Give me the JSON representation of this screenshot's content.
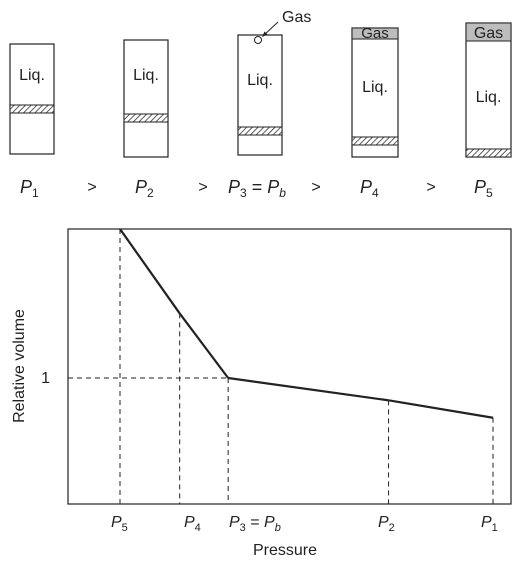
{
  "cylinders": [
    {
      "id": "c1",
      "liquid_label": "Liq.",
      "has_gas": false,
      "has_bubble": false
    },
    {
      "id": "c2",
      "liquid_label": "Liq.",
      "has_gas": false,
      "has_bubble": false
    },
    {
      "id": "c3",
      "liquid_label": "Liq.",
      "has_gas": false,
      "has_bubble": true,
      "bubble_callout": "Gas"
    },
    {
      "id": "c4",
      "liquid_label": "Liq.",
      "has_gas": true,
      "gas_label": "Gas"
    },
    {
      "id": "c5",
      "liquid_label": "Liq.",
      "has_gas": true,
      "gas_label": "Gas"
    }
  ],
  "pressure_sequence": [
    {
      "kind": "p",
      "base": "P",
      "sub": "1"
    },
    {
      "kind": "op",
      "text": ">"
    },
    {
      "kind": "p",
      "base": "P",
      "sub": "2"
    },
    {
      "kind": "op",
      "text": ">"
    },
    {
      "kind": "eq",
      "base": "P",
      "sub": "3",
      "eq": " = ",
      "base2": "P",
      "sub2": "b"
    },
    {
      "kind": "op",
      "text": ">"
    },
    {
      "kind": "p",
      "base": "P",
      "sub": "4"
    },
    {
      "kind": "op",
      "text": ">"
    },
    {
      "kind": "p",
      "base": "P",
      "sub": "5"
    }
  ],
  "chart_data": {
    "type": "line",
    "xlabel": "Pressure",
    "ylabel": "Relative volume",
    "y_tick": "1",
    "x_direction": "decreasing to the left",
    "points": [
      {
        "label": "P5",
        "x": 0.0,
        "y": 1.6
      },
      {
        "label": "P4",
        "x": 0.16,
        "y": 1.26
      },
      {
        "label": "P3 = Pb",
        "x": 0.29,
        "y": 1.0
      },
      {
        "label": "P2",
        "x": 0.72,
        "y": 0.91
      },
      {
        "label": "P1",
        "x": 1.0,
        "y": 0.84
      }
    ],
    "x_ticks": [
      {
        "base": "P",
        "sub": "5"
      },
      {
        "base": "P",
        "sub": "4"
      },
      {
        "base": "P",
        "sub": "3",
        "eq": " = ",
        "base2": "P",
        "sub2": "b"
      },
      {
        "base": "P",
        "sub": "2"
      },
      {
        "base": "P",
        "sub": "1"
      }
    ],
    "dashed_reference_lines": true
  }
}
